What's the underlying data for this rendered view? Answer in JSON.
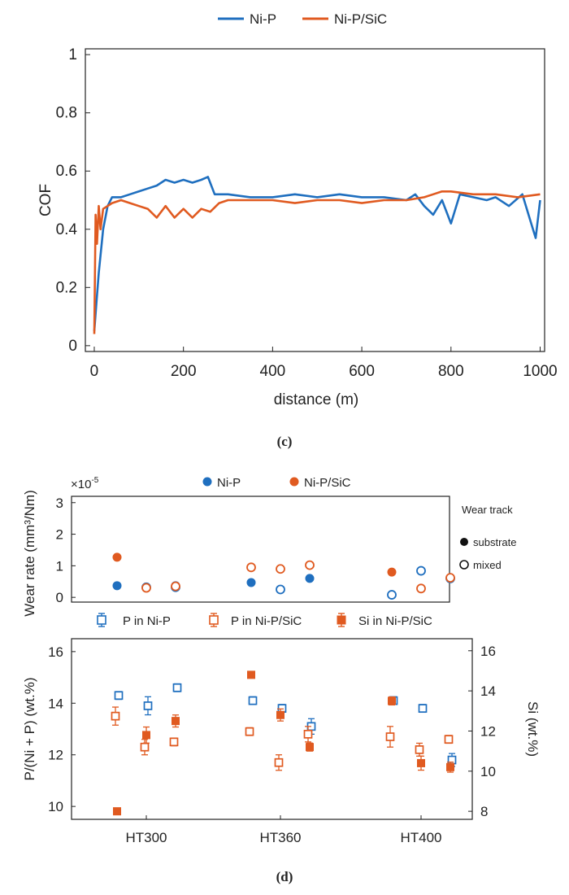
{
  "colors": {
    "ni_p": "#1f6fbf",
    "ni_p_sic": "#e05a20",
    "axis": "#222222"
  },
  "panel_c": {
    "label": "(c)",
    "legend": [
      "Ni-P",
      "Ni-P/SiC"
    ],
    "chart_data": {
      "type": "line",
      "xlabel": "distance (m)",
      "ylabel": "COF",
      "xlim": [
        -20,
        1010
      ],
      "ylim": [
        -0.02,
        1.02
      ],
      "xticks": [
        0,
        200,
        400,
        600,
        800,
        1000
      ],
      "yticks": [
        0,
        0.2,
        0.4,
        0.6,
        0.8,
        1
      ],
      "ytick_labels": [
        "0",
        "0.2",
        "0.4",
        "0.6",
        "0.8",
        "1"
      ],
      "grid": false,
      "legend_position": "top",
      "series": [
        {
          "name": "Ni-P",
          "x": [
            0,
            5,
            10,
            20,
            30,
            40,
            60,
            80,
            100,
            120,
            140,
            160,
            180,
            200,
            220,
            240,
            255,
            270,
            300,
            350,
            400,
            450,
            500,
            550,
            600,
            650,
            700,
            720,
            740,
            760,
            780,
            800,
            820,
            850,
            880,
            900,
            930,
            960,
            980,
            990,
            1000
          ],
          "y": [
            0.05,
            0.15,
            0.25,
            0.4,
            0.48,
            0.51,
            0.51,
            0.52,
            0.53,
            0.54,
            0.55,
            0.57,
            0.56,
            0.57,
            0.56,
            0.57,
            0.58,
            0.52,
            0.52,
            0.51,
            0.51,
            0.52,
            0.51,
            0.52,
            0.51,
            0.51,
            0.5,
            0.52,
            0.48,
            0.45,
            0.5,
            0.42,
            0.52,
            0.51,
            0.5,
            0.51,
            0.48,
            0.52,
            0.42,
            0.37,
            0.5
          ]
        },
        {
          "name": "Ni-P/SiC",
          "x": [
            0,
            3,
            6,
            10,
            14,
            20,
            30,
            40,
            60,
            80,
            100,
            120,
            140,
            160,
            180,
            200,
            220,
            240,
            260,
            280,
            300,
            350,
            400,
            450,
            500,
            550,
            600,
            650,
            700,
            740,
            760,
            780,
            800,
            850,
            900,
            950,
            1000
          ],
          "y": [
            0.04,
            0.45,
            0.35,
            0.48,
            0.4,
            0.47,
            0.48,
            0.49,
            0.5,
            0.49,
            0.48,
            0.47,
            0.44,
            0.48,
            0.44,
            0.47,
            0.44,
            0.47,
            0.46,
            0.49,
            0.5,
            0.5,
            0.5,
            0.49,
            0.5,
            0.5,
            0.49,
            0.5,
            0.5,
            0.51,
            0.52,
            0.53,
            0.53,
            0.52,
            0.52,
            0.51,
            0.52
          ]
        }
      ]
    }
  },
  "panel_d": {
    "label": "(d)",
    "wear": {
      "legend": [
        "Ni-P",
        "Ni-P/SiC"
      ],
      "track_legend_title": "Wear track",
      "track_legend_items": [
        "substrate",
        "mixed"
      ],
      "chart_data": {
        "type": "scatter",
        "ylabel": "Wear rate (mm³/Nm)",
        "yscale_label": "×10",
        "yscale_exponent": "-5",
        "ylim": [
          -0.15,
          3.2
        ],
        "yticks": [
          0,
          1,
          2,
          3
        ],
        "categories": [
          "HT300",
          "HT360",
          "HT400"
        ],
        "series": [
          {
            "name": "Ni-P",
            "track": "substrate",
            "points": [
              {
                "cat": 0,
                "offset": -0.3,
                "y": 0.37
              },
              {
                "cat": 0,
                "offset": 0.3,
                "y": 0.37
              },
              {
                "cat": 1,
                "offset": -0.3,
                "y": 0.47
              },
              {
                "cat": 1,
                "offset": 0.3,
                "y": 0.6
              }
            ]
          },
          {
            "name": "Ni-P",
            "track": "mixed",
            "points": [
              {
                "cat": 0,
                "offset": 0.0,
                "y": 0.32
              },
              {
                "cat": 0,
                "offset": 0.3,
                "y": 0.32
              },
              {
                "cat": 1,
                "offset": 0.0,
                "y": 0.25
              },
              {
                "cat": 2,
                "offset": -0.3,
                "y": 0.08
              },
              {
                "cat": 2,
                "offset": 0.0,
                "y": 0.84
              },
              {
                "cat": 2,
                "offset": 0.3,
                "y": 0.6
              }
            ]
          },
          {
            "name": "Ni-P/SiC",
            "track": "substrate",
            "points": [
              {
                "cat": 0,
                "offset": -0.3,
                "y": 1.27
              },
              {
                "cat": 2,
                "offset": -0.3,
                "y": 0.8
              }
            ]
          },
          {
            "name": "Ni-P/SiC",
            "track": "mixed",
            "points": [
              {
                "cat": 0,
                "offset": 0.0,
                "y": 0.3
              },
              {
                "cat": 0,
                "offset": 0.3,
                "y": 0.35
              },
              {
                "cat": 1,
                "offset": -0.3,
                "y": 0.95
              },
              {
                "cat": 1,
                "offset": 0.0,
                "y": 0.9
              },
              {
                "cat": 1,
                "offset": 0.3,
                "y": 1.02
              },
              {
                "cat": 2,
                "offset": 0.0,
                "y": 0.28
              },
              {
                "cat": 2,
                "offset": 0.3,
                "y": 0.62
              }
            ]
          }
        ]
      }
    },
    "composition": {
      "legend": [
        "P in Ni-P",
        "P in Ni-P/SiC",
        "Si in Ni-P/SiC"
      ],
      "chart_data": {
        "type": "scatter",
        "ylabel": "P/(Ni + P) (wt.%)",
        "ylabel_right": "Si  (wt.%)",
        "ylim": [
          9.5,
          16.5
        ],
        "yticks": [
          10,
          12,
          14,
          16
        ],
        "ylim_right": [
          7.6,
          16.6
        ],
        "yticks_right": [
          8,
          10,
          12,
          14,
          16
        ],
        "categories": [
          "HT300",
          "HT360",
          "HT400"
        ],
        "series": [
          {
            "name": "P in Ni-P",
            "axis": "left",
            "points": [
              {
                "cat": 0,
                "offset": -0.3,
                "y": 14.3,
                "err": 0.15
              },
              {
                "cat": 0,
                "offset": 0.0,
                "y": 13.9,
                "err": 0.35
              },
              {
                "cat": 0,
                "offset": 0.3,
                "y": 14.6,
                "err": 0.15
              },
              {
                "cat": 1,
                "offset": -0.3,
                "y": 14.1,
                "err": 0.15
              },
              {
                "cat": 1,
                "offset": 0.0,
                "y": 13.8,
                "err": 0.15
              },
              {
                "cat": 1,
                "offset": 0.3,
                "y": 13.1,
                "err": 0.3
              },
              {
                "cat": 2,
                "offset": -0.3,
                "y": 14.1,
                "err": 0.15
              },
              {
                "cat": 2,
                "offset": 0.0,
                "y": 13.8,
                "err": 0.15
              },
              {
                "cat": 2,
                "offset": 0.3,
                "y": 11.8,
                "err": 0.25
              }
            ]
          },
          {
            "name": "P in Ni-P/SiC",
            "axis": "left",
            "points": [
              {
                "cat": 0,
                "offset": -0.3,
                "y": 13.5,
                "err": 0.35
              },
              {
                "cat": 0,
                "offset": 0.0,
                "y": 12.3,
                "err": 0.3
              },
              {
                "cat": 0,
                "offset": 0.3,
                "y": 12.5,
                "err": 0.15
              },
              {
                "cat": 1,
                "offset": -0.3,
                "y": 12.9,
                "err": 0.15
              },
              {
                "cat": 1,
                "offset": 0.0,
                "y": 11.7,
                "err": 0.3
              },
              {
                "cat": 1,
                "offset": 0.3,
                "y": 12.8,
                "err": 0.3
              },
              {
                "cat": 2,
                "offset": -0.3,
                "y": 12.7,
                "err": 0.4
              },
              {
                "cat": 2,
                "offset": 0.0,
                "y": 12.2,
                "err": 0.25
              },
              {
                "cat": 2,
                "offset": 0.3,
                "y": 12.6,
                "err": 0.15
              }
            ]
          },
          {
            "name": "Si in Ni-P/SiC",
            "axis": "right",
            "points": [
              {
                "cat": 0,
                "offset": -0.3,
                "y": 8.0,
                "err": 0.15
              },
              {
                "cat": 0,
                "offset": 0.0,
                "y": 11.8,
                "err": 0.4
              },
              {
                "cat": 0,
                "offset": 0.3,
                "y": 12.5,
                "err": 0.3
              },
              {
                "cat": 1,
                "offset": -0.3,
                "y": 14.8,
                "err": 0.15
              },
              {
                "cat": 1,
                "offset": 0.0,
                "y": 12.8,
                "err": 0.3
              },
              {
                "cat": 1,
                "offset": 0.3,
                "y": 11.2,
                "err": 0.2
              },
              {
                "cat": 2,
                "offset": -0.3,
                "y": 13.5,
                "err": 0.2
              },
              {
                "cat": 2,
                "offset": 0.0,
                "y": 10.4,
                "err": 0.35
              },
              {
                "cat": 2,
                "offset": 0.3,
                "y": 10.2,
                "err": 0.25
              }
            ]
          }
        ]
      }
    }
  }
}
